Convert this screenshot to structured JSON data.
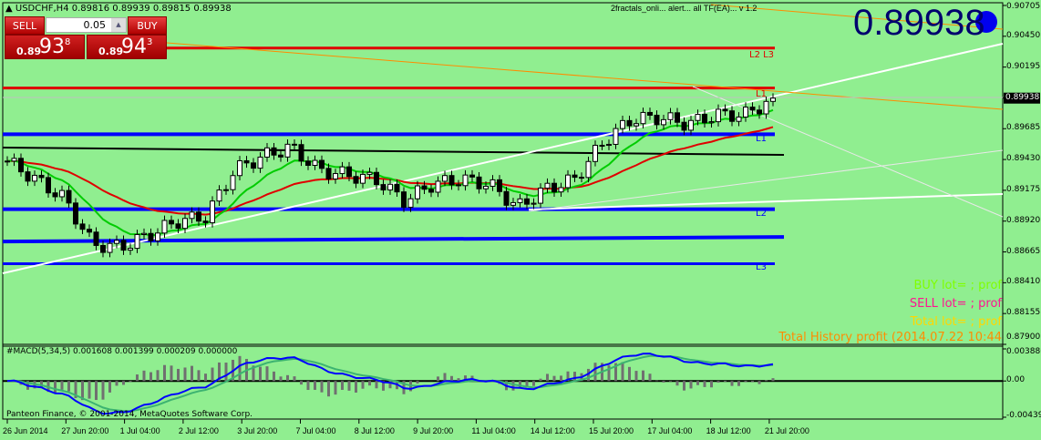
{
  "header": {
    "symbol": "USDCHF,H4",
    "ohlc": "0.89816 0.89939 0.89815 0.89938"
  },
  "trade_panel": {
    "sell_label": "SELL",
    "buy_label": "BUY",
    "lot": "0.05",
    "sell_small": "0.89",
    "sell_big": "93",
    "sell_pip": "8",
    "buy_small": "0.89",
    "buy_big": "94",
    "buy_pip": "3"
  },
  "ea_label": "2fractals_onli... alert... all TF(EA)... v 1.2",
  "big_price": "0.89938",
  "info": {
    "buy": "BUY  lot=          ; prof",
    "sell": "SELL  lot=          ; prof",
    "total": "Total  lot=          ; prof",
    "history": "Total History profit (2014.07.22 10:44"
  },
  "colors": {
    "background": "#90ee90",
    "bull": "#ffffff",
    "bear": "#000000",
    "ma_fast": "#00cc00",
    "ma_slow": "#e00000",
    "levels_blue": "#0000ff",
    "levels_red": "#e00000",
    "macd": "#0000ff",
    "signal": "#3cb371",
    "histogram": "#707070",
    "current_price_marker": "#000000"
  },
  "level_labels": {
    "l2l3_top": "L2 L3",
    "l1_top": "L1",
    "l1": "L1",
    "l2": "L2",
    "l3": "L3"
  },
  "macd_label": "#MACD(5,34,5) 0.001608 0.001399 0.000209 0.000000",
  "copyright": "Panteon Finance, © 2001-2014, MetaQuotes Software Corp.",
  "chart_data": {
    "type": "candlestick",
    "symbol": "USDCHF",
    "timeframe": "H4",
    "price_axis": [
      "0.90705",
      "0.90450",
      "0.90195",
      "0.89938",
      "0.89685",
      "0.89430",
      "0.89175",
      "0.88920",
      "0.88665",
      "0.88410",
      "0.88155",
      "0.87900"
    ],
    "current_price": "0.89938",
    "ylim": [
      0.879,
      0.9072
    ],
    "macd_axis": [
      "0.003886",
      "0.00",
      "-0.00439"
    ],
    "macd_ylim": [
      -0.00439,
      0.003886
    ],
    "time_axis": [
      "26 Jun 2014",
      "27 Jun 20:00",
      "1 Jul 04:00",
      "2 Jul 12:00",
      "3 Jul 20:00",
      "7 Jul 04:00",
      "8 Jul 12:00",
      "9 Jul 20:00",
      "11 Jul 04:00",
      "14 Jul 12:00",
      "15 Jul 20:00",
      "17 Jul 04:00",
      "18 Jul 12:00",
      "21 Jul 20:00"
    ],
    "close_samples": [
      0.89417,
      0.89264,
      0.89111,
      0.88728,
      0.88705,
      0.88804,
      0.88919,
      0.88957,
      0.8934,
      0.89455,
      0.89532,
      0.8934,
      0.89302,
      0.89264,
      0.89088,
      0.89226,
      0.89264,
      0.89226,
      0.89034,
      0.89187,
      0.89264,
      0.8957,
      0.89762,
      0.89777,
      0.89724,
      0.898,
      0.898,
      0.8993
    ],
    "levels": {
      "red_upper": 0.90352,
      "red_l1": 0.90022,
      "blue_upper": 0.89639,
      "blue_l2": 0.89019,
      "blue_mid": 0.88751,
      "blue_l3": 0.88567
    }
  }
}
